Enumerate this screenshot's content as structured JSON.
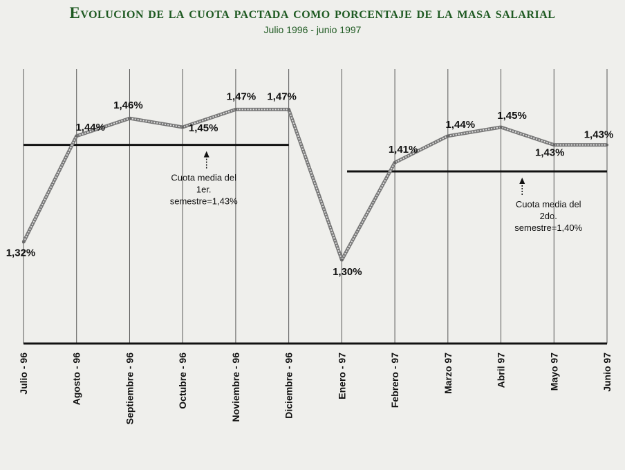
{
  "title": "Evolucion de la cuota pactada como porcentaje de la masa salarial",
  "subtitle": "Julio 1996 - junio 1997",
  "chart_data": {
    "type": "line",
    "categories": [
      "Julio - 96",
      "Agosto - 96",
      "Septiembre - 96",
      "Octubre - 96",
      "Noviembre - 96",
      "Diciembre - 96",
      "Enero - 97",
      "Febrero - 97",
      "Marzo 97",
      "Abril 97",
      "Mayo 97",
      "Junio 97"
    ],
    "values": [
      1.32,
      1.44,
      1.46,
      1.45,
      1.47,
      1.47,
      1.3,
      1.41,
      1.44,
      1.45,
      1.43,
      1.43
    ],
    "value_labels": [
      "1,32%",
      "1,44%",
      "1,46%",
      "1,45%",
      "1,47%",
      "1,47%",
      "1,30%",
      "1,41%",
      "1,44%",
      "1,45%",
      "1,43%",
      "1,43%"
    ],
    "reference_lines": [
      {
        "value": 1.43,
        "from": "Julio - 96",
        "to": "Diciembre - 96",
        "note_lines": [
          "Cuota media del",
          "1er.",
          "semestre=1,43%"
        ]
      },
      {
        "value": 1.4,
        "from": "Enero - 97",
        "to": "Junio 97",
        "note_lines": [
          "Cuota media del",
          "2do.",
          "semestre=1,40%"
        ]
      }
    ],
    "ylim": [
      1.25,
      1.5
    ],
    "grid": "vertical"
  }
}
